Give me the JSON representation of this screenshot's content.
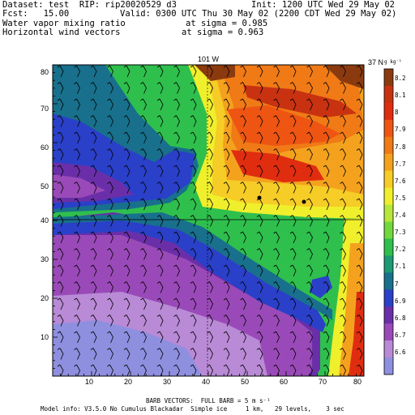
{
  "header": {
    "dataset": "Dataset: test  RIP: rip20020529 d3",
    "init": "Init: 1200 UTC Wed 29 May 02",
    "fcst": "Fcst:   15.00",
    "valid": "Valid: 0300 UTC Thu 30 May 02 (2200 CDT Wed 29 May 02)",
    "field1_name": "Water vapor mixing ratio",
    "field1_level": "at sigma = 0.985",
    "field2_name": "Horizontal wind vectors",
    "field2_level": "at sigma = 0.963"
  },
  "map": {
    "lon_label": "101 W",
    "lat_label": "37 N",
    "x_ticks": [
      "10",
      "20",
      "30",
      "40",
      "50",
      "60",
      "70",
      "80"
    ],
    "y_ticks": [
      "10",
      "20",
      "30",
      "40",
      "50",
      "60",
      "70",
      "80"
    ]
  },
  "colorbar": {
    "unit": "g kg⁻¹",
    "labels": [
      "8.2",
      "8.1",
      "8",
      "7.9",
      "7.8",
      "7.7",
      "7.6",
      "7.5",
      "7.4",
      "7.3",
      "7.2",
      "7.1",
      "7",
      "6.9",
      "6.8",
      "6.7",
      "6.6"
    ],
    "colors": [
      "#8b3a0f",
      "#c83211",
      "#e02d10",
      "#ee5512",
      "#f07a16",
      "#f4a21e",
      "#f6cc26",
      "#f0ef2c",
      "#b8e63a",
      "#72d83e",
      "#2fbf4d",
      "#1d9a73",
      "#18708c",
      "#2a40c8",
      "#6a2fa8",
      "#9a4ab8",
      "#b98ad6",
      "#8f8fe0"
    ]
  },
  "footer": {
    "barb": "BARB VECTORS:  FULL BARB = 5 m s⁻¹",
    "model": "Model info: V3.5.0 No Cumulus Blackadar  Simple ice     1 km,   29 levels,    3 sec"
  }
}
